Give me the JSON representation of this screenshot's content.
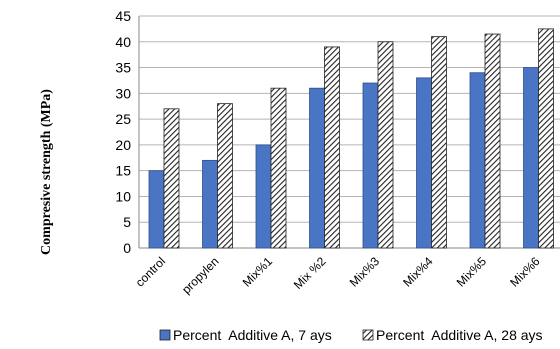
{
  "chart_data": {
    "type": "bar",
    "categories": [
      "control",
      "propylen",
      "Mix%1",
      "Mix %2",
      "Mix%3",
      "Mix%4",
      "Mix%5",
      "Mix%6"
    ],
    "series": [
      {
        "name": "Percent  Additive A, 7 ays",
        "values": [
          15,
          17,
          20,
          31,
          32,
          33,
          34,
          35
        ],
        "color": "#4a74c4",
        "pattern": "solid"
      },
      {
        "name": "Percent  Additive A, 28 ays",
        "values": [
          27,
          28,
          31,
          39,
          40,
          41,
          41.5,
          42.5
        ],
        "color": "#ffffff",
        "pattern": "diagonal-hatch"
      }
    ],
    "ylabel": "Compresive strength (MPa)",
    "xlabel": "",
    "ylim": [
      0,
      45
    ],
    "yticks": [
      0,
      5,
      10,
      15,
      20,
      25,
      30,
      35,
      40,
      45
    ],
    "grid": true,
    "legend": "bottom"
  }
}
